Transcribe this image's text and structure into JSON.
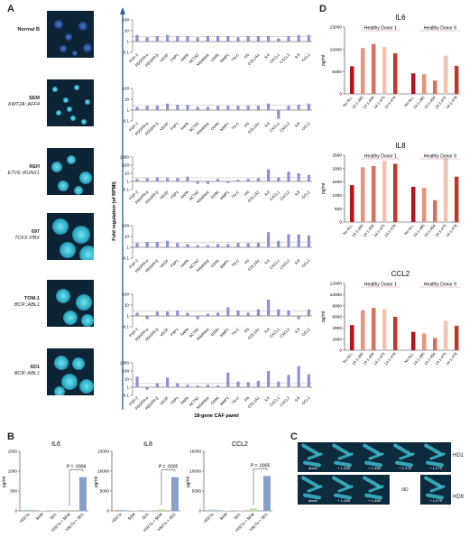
{
  "panels": {
    "A": "A",
    "B": "B",
    "C": "C",
    "D": "D"
  },
  "cell_lines": [
    {
      "name": "Normal B",
      "sub": ""
    },
    {
      "name": "SEM",
      "sub": "KMT2A::AFF4"
    },
    {
      "name": "REH",
      "sub": "ETV6::RUNX1"
    },
    {
      "name": "697",
      "sub": "TCF3::PBX"
    },
    {
      "name": "TOM-1",
      "sub": "BCR::ABL1"
    },
    {
      "name": "SD1",
      "sub": "BCR::ABL1"
    }
  ],
  "genes": [
    "FGF-2",
    "PDGFR-α",
    "PDGFR-β",
    "VEGF",
    "FSP1",
    "FAPA",
    "ACTA2",
    "Nidoblast",
    "CD90",
    "MMP1",
    "TN-C",
    "FN",
    "COL1A1",
    "IL6",
    "CXCL1",
    "CXCL2",
    "IL8",
    "CCL2"
  ],
  "panelA_yaxis": "Fold regulation (of RPMI)",
  "panelA_xaxis": "18-gene CAF panel",
  "panelA_ticks": [
    [
      "100",
      "10",
      "1",
      "0.1"
    ],
    [
      "100",
      "10",
      "1",
      "0.1"
    ],
    [
      "1000",
      "100",
      "10",
      "1",
      "0.1"
    ],
    [
      "100",
      "10",
      "1",
      "0.1"
    ],
    [
      "100",
      "10",
      "1",
      "0.1"
    ],
    [
      "1000",
      "100",
      "10",
      "1",
      "0.1"
    ]
  ],
  "panelB": {
    "ylabel": "pg/ml",
    "xcats": [
      "HS27a",
      "SEM",
      "SD1",
      "HS27a + SEM",
      "HS27a + SD1"
    ],
    "charts": [
      {
        "title": "IL6",
        "pval": "P = .0004",
        "yticks": [
          "1500",
          "1000",
          "500",
          "0"
        ]
      },
      {
        "title": "IL8",
        "pval": "P = .0005",
        "yticks": [
          "15000",
          "10000",
          "5000",
          "0"
        ]
      },
      {
        "title": "CCL2",
        "pval": "P = .0005",
        "yticks": [
          "15000",
          "10000",
          "5000",
          "0"
        ]
      }
    ]
  },
  "panelC": {
    "row1_label": "HD1",
    "row2_label": "HD9",
    "row1": [
      "alone",
      "+ 1-285",
      "+ 1-456",
      "+ 1-475",
      "+ 1-479"
    ],
    "row2": [
      "alone",
      "+ 1-285",
      "+ 1-456",
      "ND",
      "+ 1-479"
    ]
  },
  "panelD": {
    "ylabel": "pg/ml",
    "xcats": [
      "No ALL",
      "14-1-285",
      "14-1-456",
      "14-1-475",
      "14-1-479",
      "No ALL",
      "14-1-285",
      "14-1-456",
      "14-1-475",
      "14-1-479"
    ],
    "donor1": "Healthy Donor 1",
    "donor9": "Healthy Donor 9",
    "colors": [
      "#b5121b",
      "#e8927c",
      "#d9705a",
      "#f2c3b3",
      "#c0392b"
    ],
    "charts": [
      {
        "title": "IL6",
        "yticks": [
          "15000",
          "10000",
          "5000",
          "0"
        ]
      },
      {
        "title": "IL8",
        "yticks": [
          "2500",
          "2000",
          "1500",
          "1000",
          "500",
          "0"
        ]
      },
      {
        "title": "CCL2",
        "yticks": [
          "12000",
          "10000",
          "8000",
          "6000",
          "4000",
          "2000",
          "0"
        ]
      }
    ]
  },
  "chart_data": [
    {
      "type": "bar",
      "title": "IL6",
      "categories": [
        "No ALL",
        "14-1-285",
        "14-1-456",
        "14-1-475",
        "14-1-479",
        "No ALL",
        "14-1-285",
        "14-1-456",
        "14-1-475",
        "14-1-479"
      ],
      "values": [
        6200,
        10300,
        11200,
        10500,
        9100,
        4600,
        4400,
        3000,
        8600,
        6300
      ],
      "ylabel": "pg/ml",
      "ylim": [
        0,
        15000
      ]
    },
    {
      "type": "bar",
      "title": "IL8",
      "categories": [
        "No ALL",
        "14-1-285",
        "14-1-456",
        "14-1-475",
        "14-1-479",
        "No ALL",
        "14-1-285",
        "14-1-456",
        "14-1-475",
        "14-1-479"
      ],
      "values": [
        1380,
        2050,
        2100,
        2300,
        2180,
        1320,
        1280,
        820,
        2400,
        1700
      ],
      "ylabel": "pg/ml",
      "ylim": [
        0,
        2500
      ]
    },
    {
      "type": "bar",
      "title": "CCL2",
      "categories": [
        "No ALL",
        "14-1-285",
        "14-1-456",
        "14-1-475",
        "14-1-479",
        "No ALL",
        "14-1-285",
        "14-1-456",
        "14-1-475",
        "14-1-479"
      ],
      "values": [
        4500,
        7200,
        7600,
        7400,
        6000,
        3300,
        3000,
        2200,
        5300,
        4400
      ],
      "ylabel": "pg/ml",
      "ylim": [
        0,
        12000
      ]
    },
    {
      "type": "bar",
      "title": "IL6",
      "categories": [
        "HS27a",
        "SEM",
        "SD1",
        "HS27a + SEM",
        "HS27a + SD1"
      ],
      "values": [
        30,
        0,
        0,
        20,
        850
      ],
      "ylabel": "pg/ml",
      "ylim": [
        0,
        1500
      ]
    },
    {
      "type": "bar",
      "title": "IL8",
      "categories": [
        "HS27a",
        "SEM",
        "SD1",
        "HS27a + SEM",
        "HS27a + SD1"
      ],
      "values": [
        300,
        0,
        0,
        400,
        8500
      ],
      "ylabel": "pg/ml",
      "ylim": [
        0,
        15000
      ]
    },
    {
      "type": "bar",
      "title": "CCL2",
      "categories": [
        "HS27a",
        "SEM",
        "SD1",
        "HS27a + SEM",
        "HS27a + SD1"
      ],
      "values": [
        300,
        0,
        0,
        600,
        8800
      ],
      "ylabel": "pg/ml",
      "ylim": [
        0,
        15000
      ]
    }
  ]
}
